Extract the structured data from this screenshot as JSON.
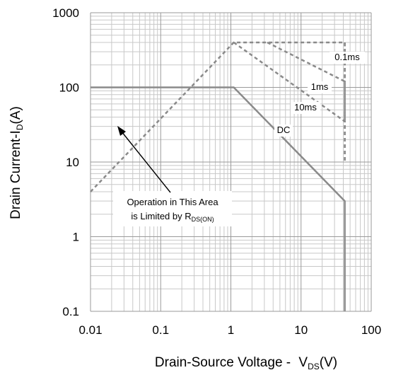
{
  "chart_data": {
    "type": "line",
    "title": "",
    "x_scale": "log",
    "y_scale": "log",
    "xlim": [
      0.01,
      100
    ],
    "ylim": [
      0.1,
      1000
    ],
    "grid": true,
    "x_ticks": [
      "0.01",
      "0.1",
      "1",
      "10",
      "100"
    ],
    "y_ticks": [
      "1000",
      "100",
      "10",
      "1",
      "0.1"
    ],
    "xlabel": {
      "main": "Drain-Source Voltage - ",
      "symbol": "V",
      "subscript": "DS",
      "unit": "(V)"
    },
    "ylabel": {
      "main": "Drain Current-I",
      "subscript": "D",
      "unit": "(A)"
    },
    "series": [
      {
        "name": "DC",
        "style": "solid",
        "x": [
          0.01,
          1.1,
          42,
          42
        ],
        "y": [
          100,
          100,
          3,
          0.1
        ]
      },
      {
        "name": "10ms",
        "style": "dashed",
        "x": [
          42,
          42
        ],
        "y": [
          400,
          10
        ]
      },
      {
        "name": "1ms",
        "style": "dashed",
        "x": [
          1.1,
          42,
          42
        ],
        "y": [
          400,
          35,
          10
        ]
      },
      {
        "name": "0.1ms",
        "style": "dashed",
        "x": [
          3.3,
          42,
          42
        ],
        "y": [
          400,
          120,
          35
        ]
      }
    ],
    "limit_line": {
      "style": "dashed",
      "x": [
        0.01,
        1.1,
        42,
        42
      ],
      "y": [
        4,
        400,
        400,
        120
      ]
    },
    "annotation": {
      "line1": "Operation in This Area",
      "line2": "is Limited by R",
      "subscript": "DS(ON)"
    },
    "colors": {
      "curve": "#8a8a8a",
      "grid_major": "#9a9a9a",
      "grid_minor": "#c8c8c8",
      "text": "#000000"
    }
  }
}
